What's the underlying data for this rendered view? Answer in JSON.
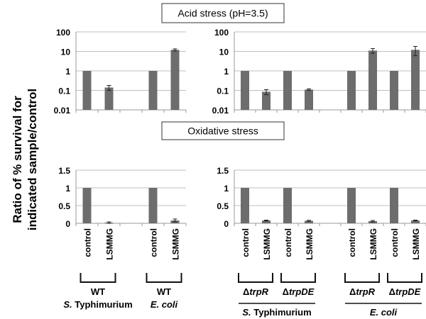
{
  "ylabel_lines": [
    "Ratio of % survival for",
    "indicated sample/control"
  ],
  "colors": {
    "bar": "#6d6d6d",
    "grid": "#bfbfbf",
    "axis": "#999999"
  },
  "chart_data": [
    {
      "type": "bar",
      "title": "Acid stress (pH=3.5)",
      "scale": "log",
      "ylim": [
        0.01,
        100
      ],
      "yticks": [
        "0.01",
        "0.1",
        "1",
        "10",
        "100"
      ],
      "panel": "left",
      "categories": [
        "control",
        "LSMMG",
        "",
        "control",
        "LSMMG"
      ],
      "values": [
        1,
        0.14,
        null,
        1,
        12
      ],
      "errors": [
        0,
        0.04,
        null,
        0,
        1.5
      ]
    },
    {
      "type": "bar",
      "title": "Acid stress (pH=3.5)",
      "scale": "log",
      "ylim": [
        0.01,
        100
      ],
      "yticks": [
        "0.01",
        "0.1",
        "1",
        "10",
        "100"
      ],
      "panel": "right",
      "categories": [
        "control",
        "LSMMG",
        "control",
        "LSMMG",
        "",
        "control",
        "LSMMG",
        "control",
        "LSMMG"
      ],
      "values": [
        1,
        0.085,
        1,
        0.11,
        null,
        1,
        11,
        1,
        12
      ],
      "errors": [
        0,
        0.025,
        0,
        0.01,
        null,
        0,
        3,
        0,
        6
      ]
    },
    {
      "type": "bar",
      "title": "Oxidative stress",
      "scale": "linear",
      "ylim": [
        0,
        1.5
      ],
      "yticks": [
        "0",
        "0.5",
        "1",
        "1.5"
      ],
      "panel": "left",
      "categories": [
        "control",
        "LSMMG",
        "",
        "control",
        "LSMMG"
      ],
      "values": [
        1,
        0.02,
        null,
        1,
        0.08
      ],
      "errors": [
        0,
        0.02,
        null,
        0,
        0.04
      ]
    },
    {
      "type": "bar",
      "title": "Oxidative stress",
      "scale": "linear",
      "ylim": [
        0,
        1.5
      ],
      "yticks": [
        "0",
        "0.5",
        "1",
        "1.5"
      ],
      "panel": "right",
      "categories": [
        "control",
        "LSMMG",
        "control",
        "LSMMG",
        "",
        "control",
        "LSMMG",
        "control",
        "LSMMG"
      ],
      "values": [
        1,
        0.08,
        1,
        0.07,
        null,
        1,
        0.06,
        1,
        0.08
      ],
      "errors": [
        0,
        0.01,
        0,
        0.015,
        null,
        0,
        0.02,
        0,
        0.01
      ]
    }
  ],
  "groups": {
    "left": [
      {
        "strain": "WT",
        "species": "S. Typhimurium",
        "italic_prefix": "S.",
        "rest": " Typhimurium"
      },
      {
        "strain": "WT",
        "species": "E. coli"
      }
    ],
    "right": [
      {
        "delta": "Δ",
        "gene": "trpR"
      },
      {
        "delta": "Δ",
        "gene": "trpDE"
      },
      {
        "delta": "Δ",
        "gene": "trpR"
      },
      {
        "delta": "Δ",
        "gene": "trpDE"
      }
    ],
    "right_species": [
      {
        "italic_prefix": "S.",
        "rest": " Typhimurium"
      },
      {
        "italic_prefix": "E. coli",
        "rest": ""
      }
    ]
  }
}
